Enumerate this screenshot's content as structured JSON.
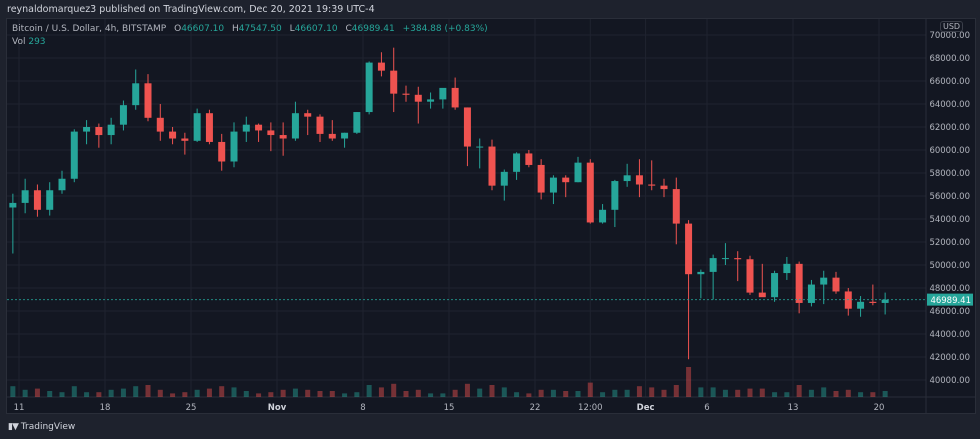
{
  "header": {
    "published": "reynaldomarquez3 published on TradingView.com, Dec 20, 2021 19:39 UTC-4"
  },
  "legend": {
    "symbol": "Bitcoin / U.S. Dollar, 4h, BITSTAMP",
    "open_label": "O",
    "open": "46607.10",
    "high_label": "H",
    "high": "47547.50",
    "low_label": "L",
    "low": "46607.10",
    "close_label": "C",
    "close": "46989.41",
    "change": "+384.88 (+0.83%)",
    "vol_label": "Vol",
    "vol": "293"
  },
  "price_axis": {
    "currency": "USD",
    "last_price_label": "46989.41"
  },
  "footer": {
    "brand": "TradingView",
    "logo_text": "17"
  },
  "colors": {
    "up": "#26a69a",
    "down": "#ef5350",
    "background": "#131722",
    "grid": "#1f2330"
  },
  "chart_data": {
    "type": "candlestick",
    "symbol": "BTCUSD",
    "interval": "4h",
    "note_on_granularity": "",
    "y_range": [
      38000,
      70000
    ],
    "y_ticks": [
      "70000.00",
      "68000.00",
      "66000.00",
      "64000.00",
      "62000.00",
      "60000.00",
      "58000.00",
      "56000.00",
      "54000.00",
      "52000.00",
      "50000.00",
      "48000.00",
      "46000.00",
      "44000.00",
      "42000.00",
      "40000.00"
    ],
    "x_ticks": [
      {
        "label": "11",
        "date": "2021-10-11"
      },
      {
        "label": "18",
        "date": "2021-10-18"
      },
      {
        "label": "25",
        "date": "2021-10-25"
      },
      {
        "label": "Nov",
        "date": "2021-11-01",
        "bold": true
      },
      {
        "label": "8",
        "date": "2021-11-08"
      },
      {
        "label": "15",
        "date": "2021-11-15"
      },
      {
        "label": "22",
        "date": "2021-11-22"
      },
      {
        "label": "12:00",
        "date": "2021-11-26T12:00"
      },
      {
        "label": "Dec",
        "date": "2021-12-01",
        "bold": true
      },
      {
        "label": "6",
        "date": "2021-12-06"
      },
      {
        "label": "13",
        "date": "2021-12-13"
      },
      {
        "label": "20",
        "date": "2021-12-20"
      }
    ],
    "last_price": 46989.41,
    "grid": true,
    "columns": [
      "date",
      "open",
      "high",
      "low",
      "close",
      "volume"
    ],
    "candles": [
      [
        "2021-10-10",
        55000,
        56200,
        51000,
        55400,
        900
      ],
      [
        "2021-10-11",
        55400,
        57500,
        54500,
        56500,
        600
      ],
      [
        "2021-10-12",
        56500,
        57000,
        54200,
        54800,
        700
      ],
      [
        "2021-10-13",
        54800,
        57200,
        54300,
        56500,
        500
      ],
      [
        "2021-10-14",
        56500,
        58200,
        56200,
        57500,
        400
      ],
      [
        "2021-10-15",
        57500,
        61800,
        57200,
        61600,
        900
      ],
      [
        "2021-10-16",
        61600,
        62600,
        60500,
        62000,
        400
      ],
      [
        "2021-10-17",
        62000,
        62300,
        60200,
        61300,
        400
      ],
      [
        "2021-10-18",
        61300,
        62800,
        60500,
        62200,
        600
      ],
      [
        "2021-10-19",
        62200,
        64300,
        61700,
        63900,
        700
      ],
      [
        "2021-10-20",
        63900,
        67000,
        63500,
        65800,
        900
      ],
      [
        "2021-10-21",
        65800,
        66600,
        62500,
        62800,
        1000
      ],
      [
        "2021-10-22",
        62800,
        64000,
        60800,
        61600,
        600
      ],
      [
        "2021-10-23",
        61600,
        62000,
        60500,
        61000,
        300
      ],
      [
        "2021-10-24",
        61000,
        61500,
        59600,
        60800,
        400
      ],
      [
        "2021-10-25",
        60800,
        63600,
        60700,
        63200,
        600
      ],
      [
        "2021-10-26",
        63200,
        63500,
        60500,
        60700,
        700
      ],
      [
        "2021-10-27",
        60700,
        61400,
        58200,
        59000,
        900
      ],
      [
        "2021-10-28",
        59000,
        62400,
        58500,
        61600,
        800
      ],
      [
        "2021-10-29",
        61600,
        62900,
        60700,
        62200,
        500
      ],
      [
        "2021-10-30",
        62200,
        62300,
        60700,
        61700,
        300
      ],
      [
        "2021-10-31",
        61700,
        62400,
        59900,
        61300,
        400
      ],
      [
        "2021-11-01",
        61300,
        62400,
        59500,
        61000,
        600
      ],
      [
        "2021-11-02",
        61000,
        64200,
        60800,
        63200,
        700
      ],
      [
        "2021-11-03",
        63200,
        63500,
        61300,
        62900,
        600
      ],
      [
        "2021-11-04",
        62900,
        63100,
        60700,
        61400,
        500
      ],
      [
        "2021-11-05",
        61400,
        62600,
        60800,
        61000,
        500
      ],
      [
        "2021-11-06",
        61000,
        61500,
        60200,
        61500,
        300
      ],
      [
        "2021-11-07",
        61500,
        63300,
        61400,
        63300,
        400
      ],
      [
        "2021-11-08",
        63300,
        67700,
        63100,
        67600,
        1000
      ],
      [
        "2021-11-09",
        67600,
        68500,
        66400,
        66900,
        800
      ],
      [
        "2021-11-10",
        66900,
        68900,
        63300,
        64900,
        1100
      ],
      [
        "2021-11-11",
        64900,
        65600,
        64200,
        64800,
        500
      ],
      [
        "2021-11-12",
        64800,
        65500,
        62300,
        64200,
        600
      ],
      [
        "2021-11-13",
        64200,
        65000,
        63600,
        64400,
        300
      ],
      [
        "2021-11-14",
        64400,
        65300,
        63600,
        65400,
        300
      ],
      [
        "2021-11-15",
        65400,
        66300,
        63500,
        63700,
        600
      ],
      [
        "2021-11-16",
        63700,
        63700,
        58600,
        60300,
        1100
      ],
      [
        "2021-11-17",
        60300,
        61000,
        58400,
        60300,
        700
      ],
      [
        "2021-11-18",
        60300,
        60900,
        56500,
        56900,
        1000
      ],
      [
        "2021-11-19",
        56900,
        58300,
        55600,
        58100,
        800
      ],
      [
        "2021-11-20",
        58100,
        59800,
        57400,
        59700,
        400
      ],
      [
        "2021-11-21",
        59700,
        60000,
        58500,
        58700,
        300
      ],
      [
        "2021-11-22",
        58700,
        59200,
        55700,
        56300,
        600
      ],
      [
        "2021-11-23",
        56300,
        57800,
        55300,
        57600,
        600
      ],
      [
        "2021-11-24",
        57600,
        57800,
        55900,
        57200,
        500
      ],
      [
        "2021-11-25",
        57200,
        59400,
        57200,
        58900,
        500
      ],
      [
        "2021-11-26",
        58900,
        59200,
        53600,
        53700,
        1200
      ],
      [
        "2021-11-27",
        53700,
        55300,
        53600,
        54800,
        400
      ],
      [
        "2021-11-28",
        54800,
        57400,
        53300,
        57300,
        600
      ],
      [
        "2021-11-29",
        57300,
        58800,
        56800,
        57800,
        600
      ],
      [
        "2021-11-30",
        57800,
        59200,
        55900,
        57000,
        900
      ],
      [
        "2021-12-01",
        57000,
        59100,
        56500,
        56900,
        800
      ],
      [
        "2021-12-02",
        56900,
        57500,
        55900,
        56600,
        600
      ],
      [
        "2021-12-03",
        56600,
        57600,
        51800,
        53600,
        1000
      ],
      [
        "2021-12-04",
        53600,
        53900,
        41800,
        49200,
        2500
      ],
      [
        "2021-12-05",
        49200,
        49600,
        47100,
        49400,
        800
      ],
      [
        "2021-12-06",
        49400,
        50900,
        47000,
        50600,
        800
      ],
      [
        "2021-12-07",
        50600,
        51900,
        50000,
        50600,
        600
      ],
      [
        "2021-12-08",
        50600,
        51200,
        48600,
        50500,
        600
      ],
      [
        "2021-12-09",
        50500,
        50800,
        47400,
        47600,
        700
      ],
      [
        "2021-12-10",
        47600,
        50100,
        47300,
        47200,
        700
      ],
      [
        "2021-12-11",
        47200,
        49500,
        46800,
        49300,
        400
      ],
      [
        "2021-12-12",
        49300,
        50700,
        48700,
        50100,
        400
      ],
      [
        "2021-12-13",
        50100,
        50300,
        45800,
        46700,
        1000
      ],
      [
        "2021-12-14",
        46700,
        48700,
        46400,
        48300,
        600
      ],
      [
        "2021-12-15",
        48300,
        49500,
        46600,
        48900,
        800
      ],
      [
        "2021-12-16",
        48900,
        49400,
        47500,
        47700,
        500
      ],
      [
        "2021-12-17",
        47700,
        48000,
        45600,
        46200,
        600
      ],
      [
        "2021-12-18",
        46200,
        47300,
        45500,
        46800,
        400
      ],
      [
        "2021-12-19",
        46800,
        48300,
        46500,
        46700,
        400
      ],
      [
        "2021-12-20",
        46700,
        47600,
        45700,
        46989.41,
        500
      ]
    ]
  }
}
